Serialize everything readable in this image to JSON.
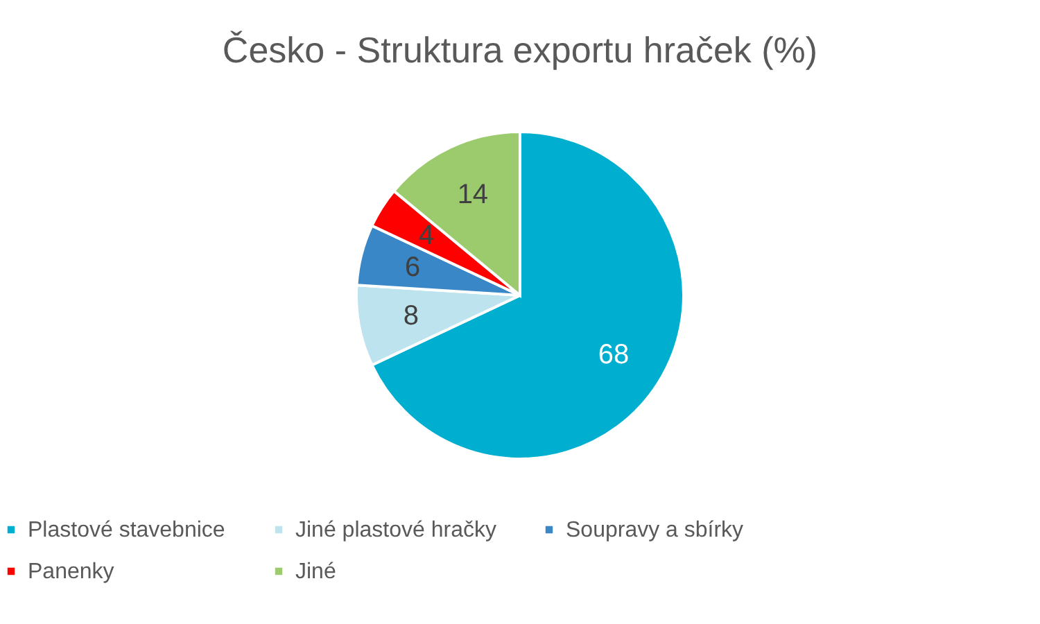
{
  "chart_data": {
    "type": "pie",
    "title": "Česko - Struktura exportu hraček (%)",
    "categories": [
      "Plastové stavebnice",
      "Jiné plastové hračky",
      "Soupravy a sbírky",
      "Panenky",
      "Jiné"
    ],
    "values": [
      68,
      8,
      6,
      4,
      14
    ],
    "colors": [
      "#00aed0",
      "#bde3ee",
      "#3a87c8",
      "#ff0000",
      "#9bcb6c"
    ],
    "data_labels": true,
    "legend": "bottom"
  }
}
